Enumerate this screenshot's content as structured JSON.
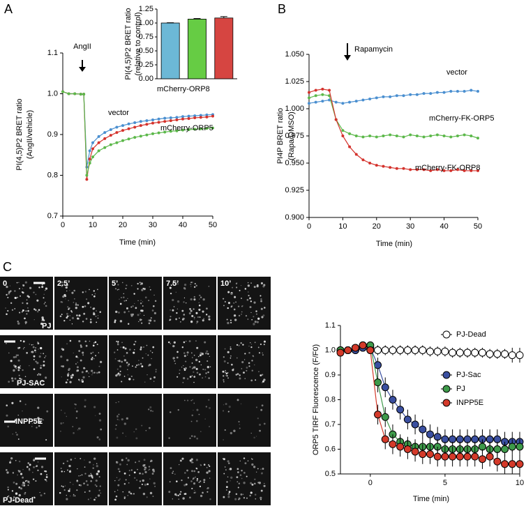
{
  "panel_labels": [
    "A",
    "B",
    "C"
  ],
  "micrographs": {
    "times": [
      "0",
      "2.5’",
      "5’",
      "7.5’",
      "10’"
    ],
    "rows": [
      "PJ",
      "PJ-SAC",
      "INPP5E",
      "PJ-Dead"
    ]
  },
  "chart_data": [
    {
      "type": "line",
      "annotation": "AngII",
      "xlabel": "Time (min)",
      "ylabel": [
        "PI(4,5)P2 BRET ratio",
        "(AngII/vehicle)"
      ],
      "xlim": [
        0,
        50
      ],
      "xticks": [
        0,
        10,
        20,
        30,
        40,
        50
      ],
      "ylim": [
        0.7,
        1.1
      ],
      "yticks": [
        0.7,
        0.8,
        0.9,
        {
          "value": 1,
          "label": "1.0"
        },
        1.1
      ],
      "x": [
        0,
        2,
        4,
        6,
        7,
        8,
        9,
        10,
        12,
        14,
        16,
        18,
        20,
        22,
        24,
        26,
        28,
        30,
        32,
        34,
        36,
        38,
        40,
        42,
        44,
        46,
        48,
        50
      ],
      "series": [
        {
          "name": "vector",
          "color": "#4a8fd0",
          "values": [
            1.005,
            1.0,
            1.0,
            0.999,
            0.999,
            0.82,
            0.86,
            0.88,
            0.895,
            0.905,
            0.912,
            0.918,
            0.922,
            0.926,
            0.929,
            0.932,
            0.934,
            0.936,
            0.938,
            0.94,
            0.941,
            0.942,
            0.944,
            0.945,
            0.946,
            0.947,
            0.948,
            0.949
          ]
        },
        {
          "name": "mCherry-ORP8",
          "color": "#d4322c",
          "values": [
            1.005,
            1.0,
            1.0,
            0.999,
            0.999,
            0.79,
            0.84,
            0.865,
            0.88,
            0.89,
            0.898,
            0.905,
            0.91,
            0.914,
            0.918,
            0.922,
            0.925,
            0.928,
            0.93,
            0.932,
            0.934,
            0.936,
            0.938,
            0.939,
            0.941,
            0.942,
            0.943,
            0.945
          ]
        },
        {
          "name": "mCherry-ORP5",
          "color": "#5cb84a",
          "values": [
            1.005,
            1.0,
            1.0,
            0.999,
            0.999,
            0.8,
            0.83,
            0.845,
            0.86,
            0.868,
            0.875,
            0.88,
            0.885,
            0.889,
            0.893,
            0.896,
            0.899,
            0.902,
            0.904,
            0.906,
            0.908,
            0.909,
            0.911,
            0.912,
            0.913,
            0.914,
            0.915,
            0.916
          ]
        }
      ]
    },
    {
      "type": "bar",
      "ylabel": [
        "PI(4,5)P2 BRET ratio",
        "(relative to control)"
      ],
      "ylim": [
        0,
        1.25
      ],
      "yticks": [
        {
          "value": 0,
          "label": "0.00"
        },
        {
          "value": 0.25,
          "label": "0.25"
        },
        {
          "value": 0.5,
          "label": "0.50"
        },
        {
          "value": 0.75,
          "label": "0.75"
        },
        {
          "value": 1,
          "label": "1.00"
        },
        {
          "value": 1.25,
          "label": "1.25"
        }
      ],
      "values": [
        1.0,
        1.07,
        1.09
      ],
      "errors": [
        0.005,
        0.01,
        0.025
      ],
      "colors": [
        "#6cb8d6",
        "#66cc44",
        "#d64541"
      ]
    },
    {
      "type": "line",
      "annotation": "Rapamycin",
      "xlabel": "Time (min)",
      "ylabel": [
        "PI4P BRET ratio",
        "(Rapa/DMSO)"
      ],
      "xlim": [
        0,
        50
      ],
      "xticks": [
        0,
        10,
        20,
        30,
        40,
        50
      ],
      "ylim": [
        0.9,
        1.05
      ],
      "yticks": [
        {
          "value": 0.9,
          "label": "0.900"
        },
        0.925,
        {
          "value": 0.95,
          "label": "0.950"
        },
        0.975,
        {
          "value": 1,
          "label": "1.000"
        },
        1.025,
        {
          "value": 1.05,
          "label": "1.050"
        }
      ],
      "x": [
        0,
        2,
        4,
        6,
        8,
        10,
        12,
        14,
        16,
        18,
        20,
        22,
        24,
        26,
        28,
        30,
        32,
        34,
        36,
        38,
        40,
        42,
        44,
        46,
        48,
        50
      ],
      "series": [
        {
          "name": "vector",
          "color": "#4a8fd0",
          "values": [
            1.005,
            1.006,
            1.007,
            1.008,
            1.006,
            1.005,
            1.006,
            1.007,
            1.008,
            1.009,
            1.01,
            1.011,
            1.011,
            1.012,
            1.012,
            1.013,
            1.013,
            1.014,
            1.014,
            1.015,
            1.015,
            1.016,
            1.016,
            1.016,
            1.017,
            1.016
          ]
        },
        {
          "name": "mCherry-FK-ORP5",
          "color": "#5cb84a",
          "values": [
            1.01,
            1.012,
            1.013,
            1.012,
            0.99,
            0.98,
            0.977,
            0.975,
            0.974,
            0.975,
            0.974,
            0.975,
            0.976,
            0.975,
            0.974,
            0.976,
            0.975,
            0.974,
            0.975,
            0.976,
            0.975,
            0.974,
            0.975,
            0.976,
            0.975,
            0.973
          ]
        },
        {
          "name": "mCherry-FK-ORP8",
          "color": "#d4322c",
          "values": [
            1.015,
            1.017,
            1.018,
            1.017,
            0.99,
            0.975,
            0.965,
            0.958,
            0.953,
            0.95,
            0.948,
            0.947,
            0.946,
            0.945,
            0.945,
            0.944,
            0.944,
            0.944,
            0.943,
            0.944,
            0.943,
            0.943,
            0.944,
            0.943,
            0.943,
            0.943
          ]
        }
      ]
    },
    {
      "type": "line",
      "xlabel": "Time (min)",
      "ylabel": [
        "ORP5 TIRF Fluorescence (F/F0)"
      ],
      "xlim": [
        -2,
        10
      ],
      "xticks": [
        0,
        5,
        10
      ],
      "ylim": [
        0.5,
        1.1
      ],
      "yticks": [
        0.5,
        0.6,
        0.7,
        0.8,
        0.9,
        {
          "value": 1,
          "label": "1.0"
        },
        1.1
      ],
      "x": [
        -2,
        -1.5,
        -1,
        -0.5,
        0,
        0.5,
        1,
        1.5,
        2,
        2.5,
        3,
        3.5,
        4,
        4.5,
        5,
        5.5,
        6,
        6.5,
        7,
        7.5,
        8,
        8.5,
        9,
        9.5,
        10
      ],
      "series": [
        {
          "name": "PJ-Dead",
          "color": "#ffffff",
          "values": [
            1.0,
            1.0,
            1.0,
            1.01,
            1.0,
            1.0,
            1.0,
            1.0,
            1.0,
            1.0,
            1.0,
            1.0,
            0.995,
            0.995,
            0.995,
            0.99,
            0.99,
            0.99,
            0.99,
            0.99,
            0.985,
            0.985,
            0.985,
            0.98,
            0.98
          ],
          "errors": [
            0.01,
            0.01,
            0.01,
            0.01,
            0.01,
            0.02,
            0.02,
            0.02,
            0.02,
            0.02,
            0.02,
            0.02,
            0.02,
            0.02,
            0.02,
            0.02,
            0.02,
            0.02,
            0.02,
            0.02,
            0.02,
            0.02,
            0.02,
            0.03,
            0.03
          ]
        },
        {
          "name": "PJ-Sac",
          "color": "#3a4fa0",
          "values": [
            1.0,
            1.0,
            1.0,
            1.01,
            1.01,
            0.94,
            0.85,
            0.8,
            0.76,
            0.72,
            0.7,
            0.68,
            0.66,
            0.65,
            0.64,
            0.64,
            0.64,
            0.64,
            0.64,
            0.64,
            0.64,
            0.64,
            0.63,
            0.63,
            0.63
          ],
          "errors": [
            0.01,
            0.01,
            0.01,
            0.01,
            0.01,
            0.03,
            0.04,
            0.04,
            0.04,
            0.04,
            0.04,
            0.04,
            0.04,
            0.04,
            0.04,
            0.04,
            0.04,
            0.04,
            0.04,
            0.04,
            0.04,
            0.04,
            0.04,
            0.04,
            0.04
          ]
        },
        {
          "name": "PJ",
          "color": "#3e9a4a",
          "values": [
            1.0,
            1.0,
            1.01,
            1.02,
            1.02,
            0.87,
            0.73,
            0.66,
            0.63,
            0.62,
            0.61,
            0.61,
            0.61,
            0.61,
            0.6,
            0.6,
            0.6,
            0.6,
            0.6,
            0.61,
            0.6,
            0.6,
            0.6,
            0.61,
            0.61
          ],
          "errors": [
            0.01,
            0.01,
            0.01,
            0.01,
            0.01,
            0.04,
            0.04,
            0.04,
            0.03,
            0.03,
            0.03,
            0.03,
            0.03,
            0.03,
            0.03,
            0.03,
            0.03,
            0.03,
            0.03,
            0.03,
            0.03,
            0.03,
            0.03,
            0.03,
            0.03
          ]
        },
        {
          "name": "INPP5E",
          "color": "#d43a2a",
          "values": [
            0.99,
            1.0,
            1.01,
            1.02,
            1.0,
            0.74,
            0.64,
            0.62,
            0.61,
            0.6,
            0.59,
            0.58,
            0.58,
            0.57,
            0.57,
            0.57,
            0.57,
            0.57,
            0.57,
            0.56,
            0.57,
            0.55,
            0.54,
            0.54,
            0.54
          ],
          "errors": [
            0.01,
            0.01,
            0.01,
            0.01,
            0.01,
            0.04,
            0.04,
            0.04,
            0.04,
            0.04,
            0.04,
            0.04,
            0.04,
            0.04,
            0.04,
            0.04,
            0.04,
            0.04,
            0.04,
            0.04,
            0.04,
            0.04,
            0.04,
            0.04,
            0.04
          ]
        }
      ]
    }
  ]
}
